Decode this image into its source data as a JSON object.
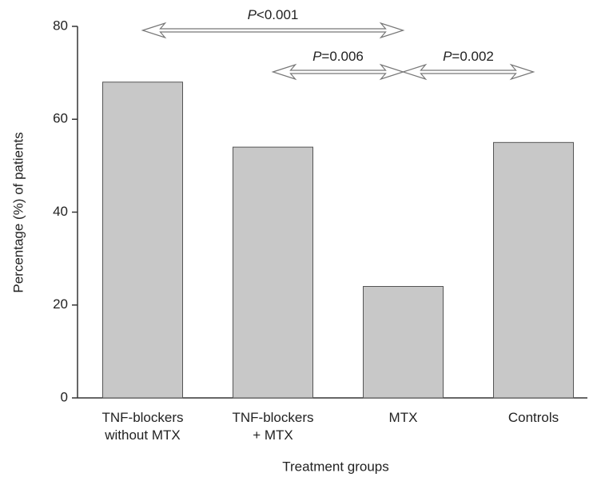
{
  "chart_data": {
    "type": "bar",
    "categories": [
      "TNF-blockers\nwithout MTX",
      "TNF-blockers\n+ MTX",
      "MTX",
      "Controls"
    ],
    "values": [
      68,
      54,
      24,
      55
    ],
    "color": "#c8c8c8",
    "xlabel": "Treatment groups",
    "ylabel": "Percentage (%) of patients",
    "ylim": [
      0,
      80
    ],
    "yticks": [
      0,
      20,
      40,
      60,
      80
    ],
    "annotations": [
      "P<0.001",
      "P=0.006",
      "P=0.002"
    ]
  }
}
